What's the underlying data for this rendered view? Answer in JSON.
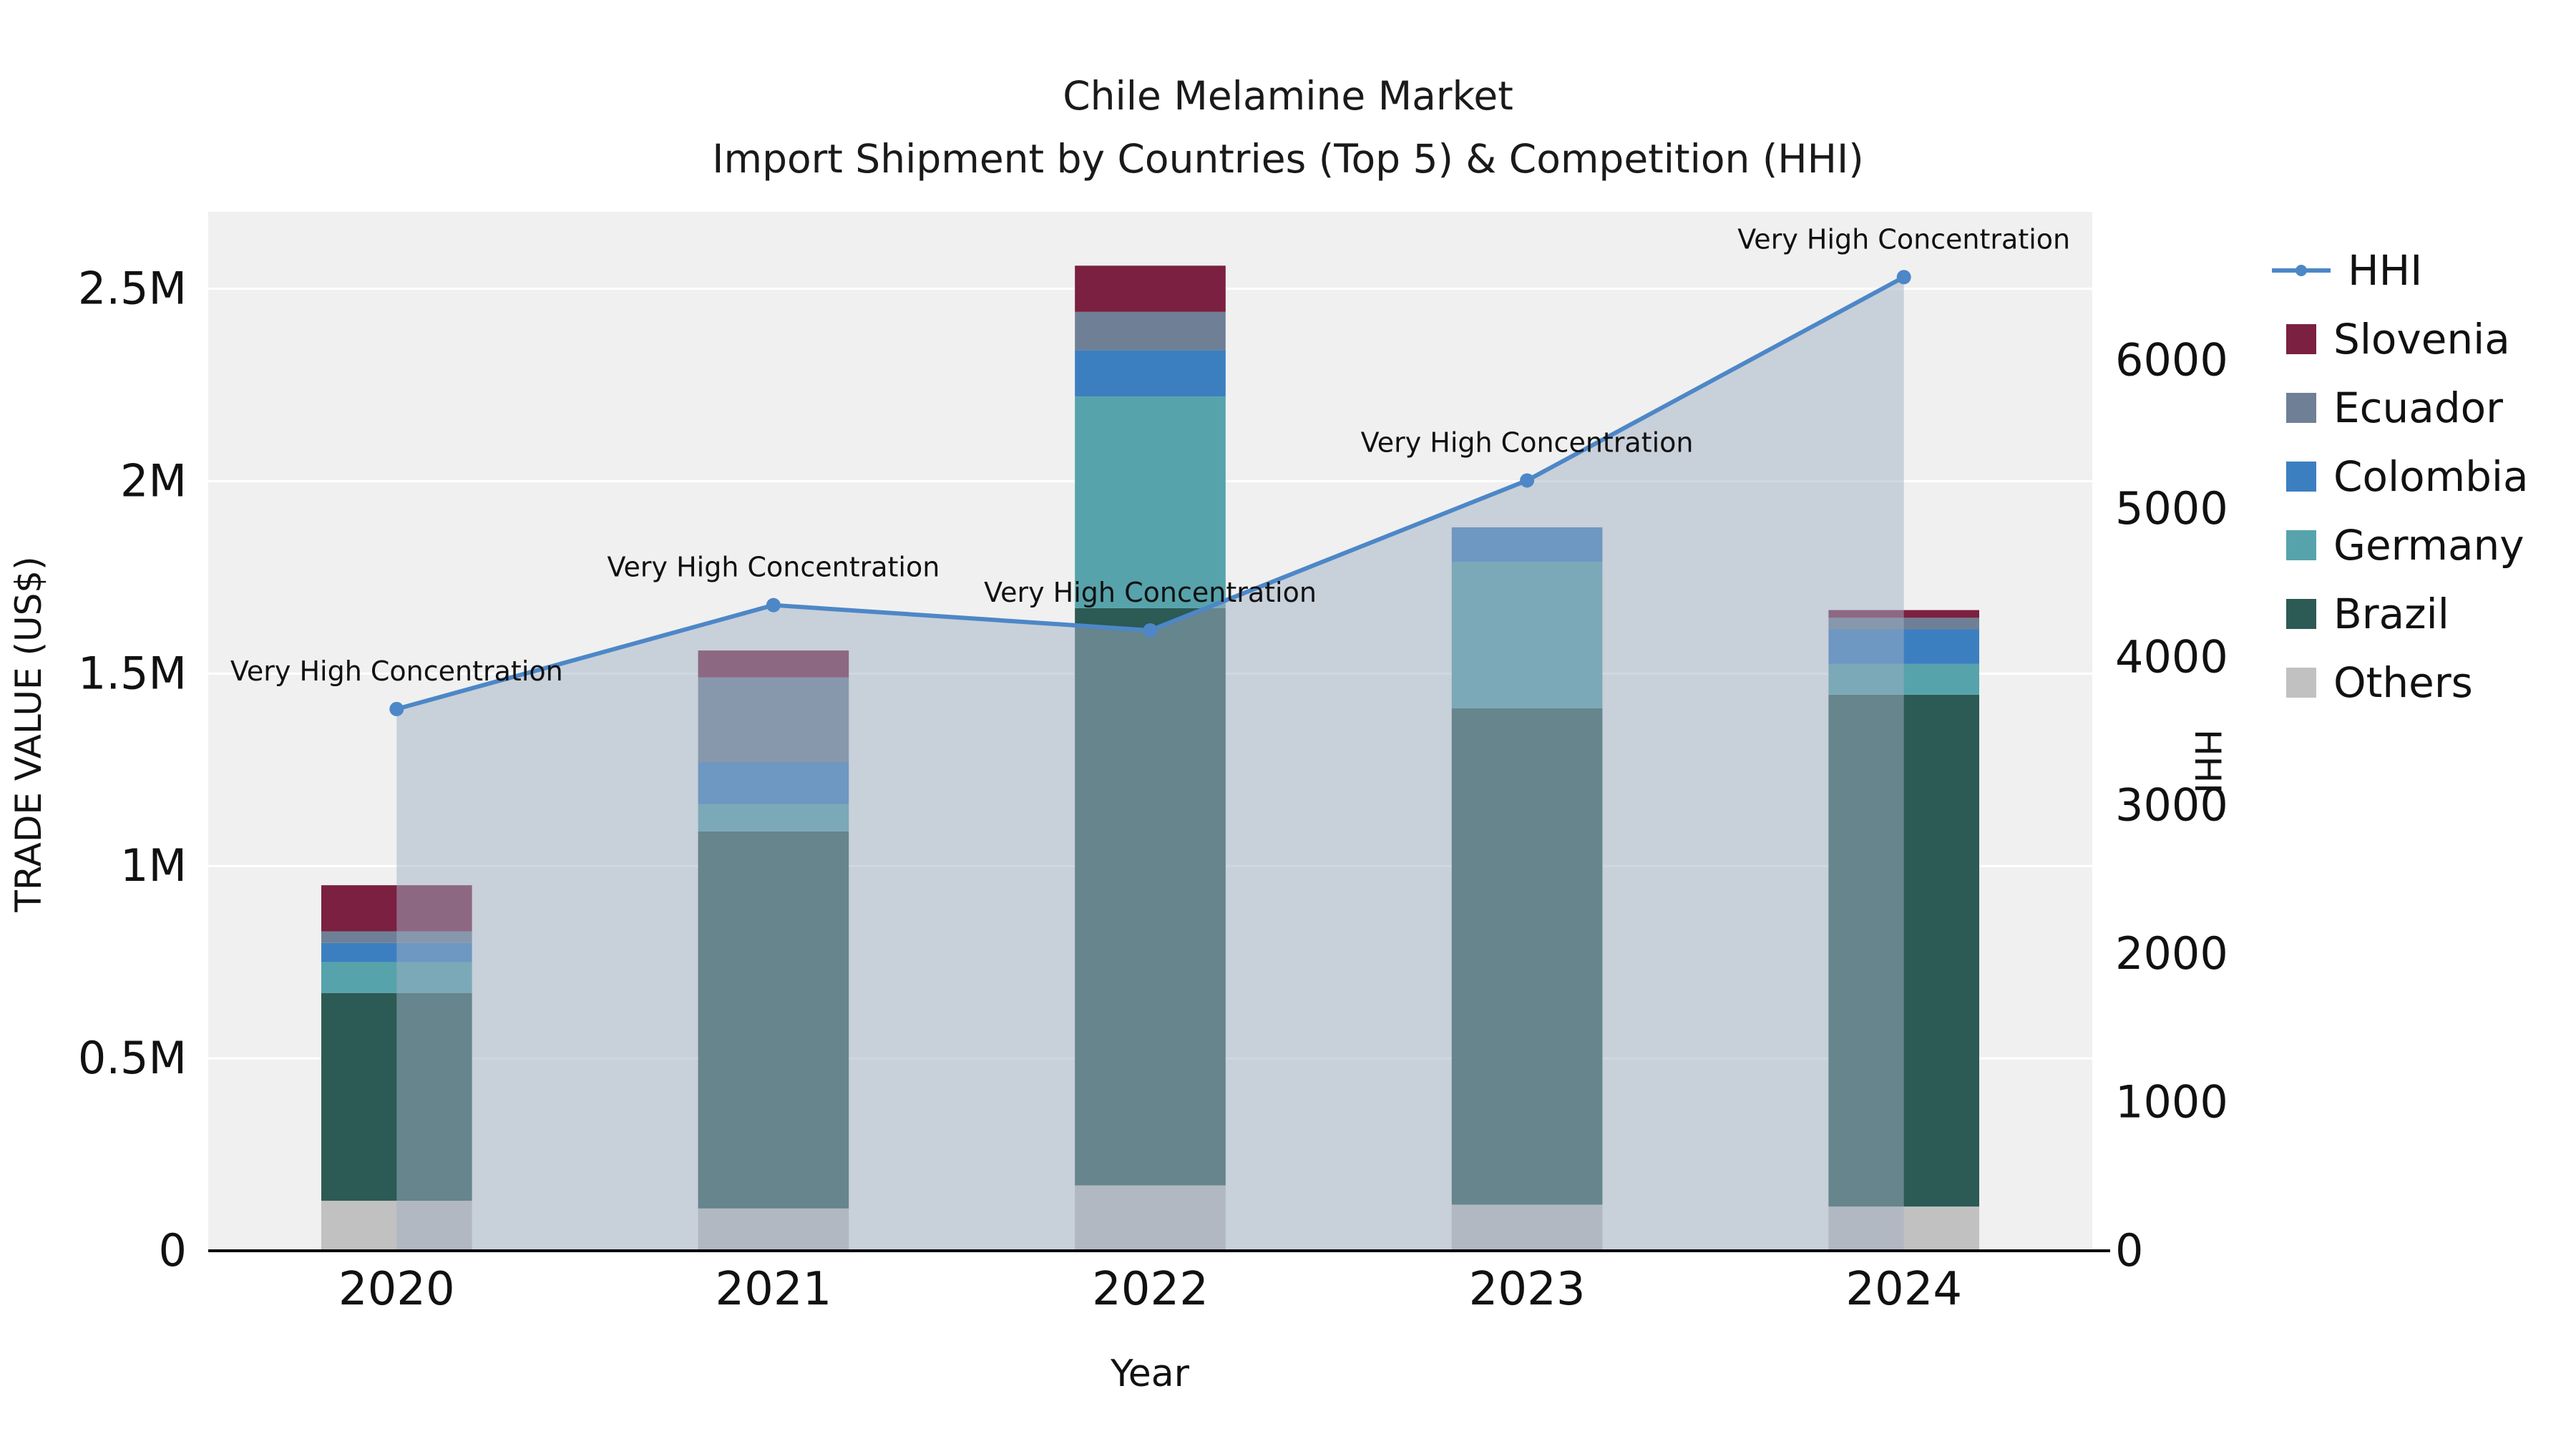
{
  "chart_data": {
    "type": "bar+line",
    "title": "Chile Melamine Market",
    "subtitle": "Import Shipment by Countries (Top 5) & Competition (HHI)",
    "xlabel": "Year",
    "ylabel_left": "TRADE VALUE (US$)",
    "ylabel_right": "HHI",
    "categories": [
      "2020",
      "2021",
      "2022",
      "2023",
      "2024"
    ],
    "bar_series": [
      {
        "name": "Others",
        "color": "#c2c1c1",
        "values": [
          130000,
          110000,
          170000,
          120000,
          115000
        ]
      },
      {
        "name": "Brazil",
        "color": "#2c5a55",
        "values": [
          540000,
          980000,
          1500000,
          1290000,
          1330000
        ]
      },
      {
        "name": "Germany",
        "color": "#57a3ab",
        "values": [
          80000,
          70000,
          550000,
          380000,
          80000
        ]
      },
      {
        "name": "Colombia",
        "color": "#3c7fc0",
        "values": [
          50000,
          110000,
          120000,
          90000,
          90000
        ]
      },
      {
        "name": "Ecuador",
        "color": "#6f8096",
        "values": [
          30000,
          220000,
          100000,
          0,
          30000
        ]
      },
      {
        "name": "Slovenia",
        "color": "#7b2040",
        "values": [
          120000,
          70000,
          120000,
          0,
          20000
        ]
      }
    ],
    "line_series": {
      "name": "HHI",
      "color": "#4d87c7",
      "values": [
        3650,
        4350,
        4180,
        5190,
        6560
      ],
      "annotations": [
        "Very High Concentration",
        "Very High Concentration",
        "Very High Concentration",
        "Very High Concentration",
        "Very High Concentration"
      ]
    },
    "left_axis": {
      "max": 2700000,
      "ticks": [
        0,
        500000,
        1000000,
        1500000,
        2000000,
        2500000
      ],
      "tick_labels": [
        "0",
        "0.5M",
        "1M",
        "1.5M",
        "2M",
        "2.5M"
      ]
    },
    "right_axis": {
      "max": 7000,
      "ticks": [
        0,
        1000,
        2000,
        3000,
        4000,
        5000,
        6000
      ],
      "tick_labels": [
        "0",
        "1000",
        "2000",
        "3000",
        "4000",
        "5000",
        "6000"
      ]
    },
    "layout": {
      "grid": true,
      "legend_position": "right",
      "xlim_categories": 5
    },
    "colors": {
      "plot_bg": "#f0f0f0",
      "grid": "#ffffff",
      "area_fill": "rgba(160,175,196,0.5)",
      "axis_line": "#000000",
      "text": "#111111"
    }
  }
}
